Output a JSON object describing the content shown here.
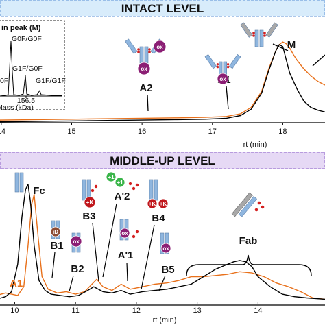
{
  "colors": {
    "orange": "#e8701a",
    "black": "#000000",
    "intact_banner": "#d8ecfb",
    "middle_banner": "#e6d9f5",
    "antibody_blue": "#8fb6df",
    "antibody_gray": "#a8a8a8",
    "ox_purple": "#8b1e74",
    "k_red": "#c0161b",
    "plus1_green": "#3ab54a",
    "id_brown": "#8b4a33",
    "glycan_red": "#d42020"
  },
  "icons": [
    "antibody-icon",
    "glycan-icon",
    "oxidation-badge-icon",
    "lysine-badge-icon",
    "glycation-badge-icon",
    "isoaspartate-badge-icon"
  ],
  "chart_data": [
    {
      "panel": "intact",
      "type": "line",
      "banner": "INTACT LEVEL",
      "xlabel": "rt (min)",
      "xlim": [
        13.3,
        18.6
      ],
      "x_ticks": [
        "14",
        "15",
        "16",
        "17",
        "18"
      ],
      "x_tick_values": [
        14,
        15,
        16,
        17,
        18
      ],
      "series": [
        {
          "color": "orange",
          "x": [
            13.3,
            14.0,
            14.5,
            15.0,
            15.5,
            16.0,
            16.5,
            16.9,
            17.2,
            17.4,
            17.55,
            17.7,
            17.8,
            17.9,
            17.95,
            18.0,
            18.05,
            18.1,
            18.15,
            18.2,
            18.3,
            18.4,
            18.5,
            18.6
          ],
          "y": [
            0.02,
            0.03,
            0.035,
            0.04,
            0.045,
            0.05,
            0.055,
            0.06,
            0.07,
            0.1,
            0.17,
            0.35,
            0.6,
            0.8,
            0.87,
            0.9,
            0.88,
            0.83,
            0.76,
            0.7,
            0.6,
            0.52,
            0.46,
            0.42
          ]
        },
        {
          "color": "black",
          "x": [
            13.3,
            14.0,
            14.5,
            15.0,
            15.5,
            16.0,
            16.5,
            16.9,
            17.2,
            17.4,
            17.55,
            17.7,
            17.8,
            17.9,
            17.95,
            18.0,
            18.05,
            18.1,
            18.2,
            18.3,
            18.4,
            18.5,
            18.6
          ],
          "y": [
            0.0,
            0.01,
            0.015,
            0.02,
            0.025,
            0.03,
            0.035,
            0.04,
            0.05,
            0.08,
            0.15,
            0.33,
            0.58,
            0.8,
            0.87,
            0.85,
            0.7,
            0.55,
            0.38,
            0.24,
            0.17,
            0.14,
            0.12
          ]
        }
      ],
      "annotations": [
        {
          "label": "A2",
          "x": 15.6
        },
        {
          "label": "A1",
          "x": 16.85
        },
        {
          "label": "M",
          "x": 17.95
        }
      ],
      "inset": {
        "title": "in peak (M)",
        "labels": [
          "G0F/G0F",
          "G1F/G0F",
          "G1F/G1F",
          "0F"
        ],
        "tick": "156.5",
        "xlabel": "Mass (kDa)"
      }
    },
    {
      "panel": "middle-up",
      "type": "line",
      "banner": "MIDDLE-UP LEVEL",
      "xlabel": "rt (min)",
      "xlim": [
        9.5,
        15.1
      ],
      "x_ticks": [
        "10",
        "11",
        "12",
        "13",
        "14"
      ],
      "x_tick_values": [
        10,
        11,
        12,
        13,
        14
      ],
      "series": [
        {
          "color": "orange",
          "x": [
            9.5,
            9.7,
            9.85,
            9.95,
            10.05,
            10.15,
            10.22,
            10.28,
            10.32,
            10.38,
            10.45,
            10.55,
            10.7,
            10.85,
            11.0,
            11.15,
            11.25,
            11.35,
            11.45,
            11.6,
            11.75,
            11.9,
            12.1,
            12.3,
            12.5,
            12.7,
            12.9,
            13.1,
            13.3,
            13.5,
            13.7,
            13.9,
            14.1,
            14.3,
            14.5,
            14.7,
            14.9,
            15.1
          ],
          "y": [
            0.02,
            0.05,
            0.07,
            0.06,
            0.05,
            0.12,
            0.45,
            0.78,
            0.86,
            0.55,
            0.2,
            0.1,
            0.07,
            0.08,
            0.06,
            0.08,
            0.13,
            0.18,
            0.12,
            0.09,
            0.14,
            0.1,
            0.12,
            0.14,
            0.15,
            0.17,
            0.2,
            0.2,
            0.21,
            0.22,
            0.24,
            0.23,
            0.2,
            0.15,
            0.12,
            0.08,
            0.03,
            0.02
          ]
        },
        {
          "color": "black",
          "x": [
            9.5,
            9.7,
            9.85,
            9.95,
            10.05,
            10.12,
            10.18,
            10.22,
            10.26,
            10.32,
            10.4,
            10.5,
            10.6,
            10.75,
            10.9,
            11.05,
            11.2,
            11.3,
            11.45,
            11.6,
            11.75,
            11.9,
            12.1,
            12.3,
            12.5,
            12.7,
            12.9,
            13.1,
            13.3,
            13.5,
            13.6,
            13.7,
            13.8,
            13.9,
            14.0,
            14.2,
            14.4,
            14.6,
            14.8,
            15.1
          ],
          "y": [
            0.01,
            0.02,
            0.04,
            0.08,
            0.3,
            0.68,
            0.9,
            0.94,
            0.8,
            0.45,
            0.17,
            0.09,
            0.06,
            0.05,
            0.04,
            0.05,
            0.09,
            0.12,
            0.08,
            0.07,
            0.09,
            0.06,
            0.08,
            0.09,
            0.1,
            0.12,
            0.14,
            0.2,
            0.26,
            0.3,
            0.32,
            0.33,
            0.32,
            0.28,
            0.2,
            0.12,
            0.06,
            0.04,
            0.03,
            0.02
          ]
        }
      ],
      "annotations": [
        {
          "label": "Fc",
          "x": 10.22
        },
        {
          "label": "B1",
          "x": 10.5
        },
        {
          "label": "B2",
          "x": 10.85
        },
        {
          "label": "B3",
          "x": 11.25
        },
        {
          "label": "A'2",
          "x": 11.4
        },
        {
          "label": "A'1",
          "x": 11.75
        },
        {
          "label": "B4",
          "x": 11.95
        },
        {
          "label": "B5",
          "x": 12.25
        },
        {
          "label": "Fab",
          "x": 13.7
        },
        {
          "label": "A1",
          "x": 9.6
        }
      ],
      "badges": [
        "ox",
        "+K",
        "+1",
        "iD"
      ]
    }
  ]
}
